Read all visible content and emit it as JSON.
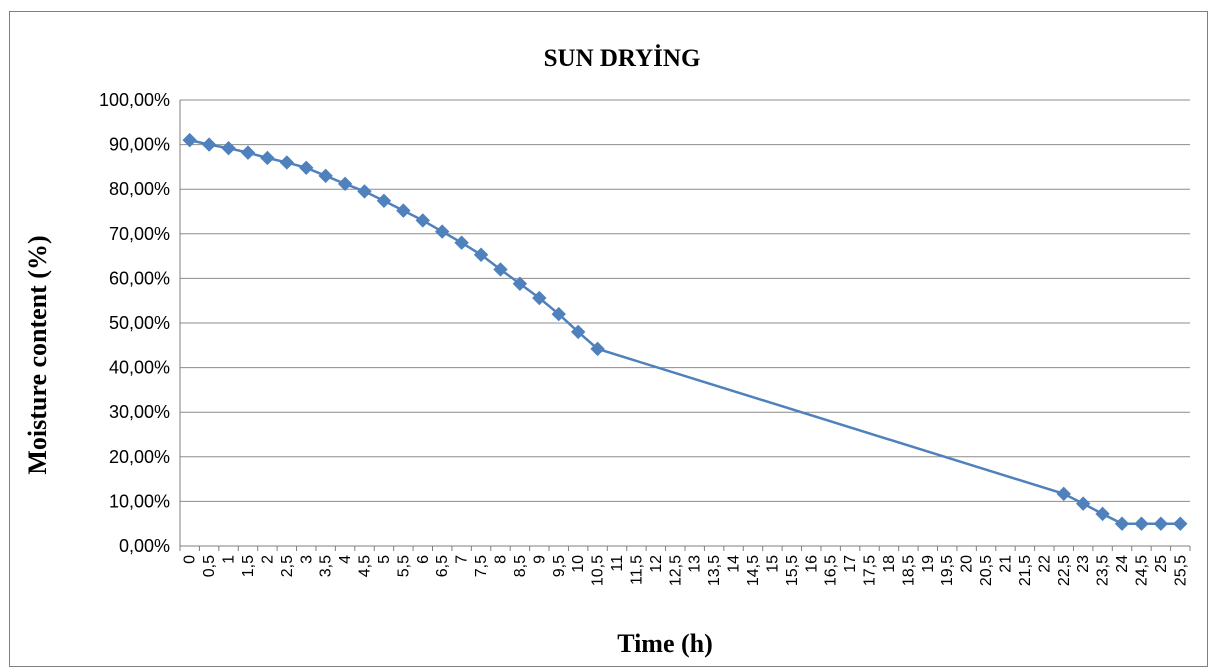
{
  "chart_data": {
    "type": "line",
    "title": "SUN DRYİNG",
    "xlabel": "Time (h)",
    "ylabel": "Moisture content  (%)",
    "ylim": [
      0,
      100
    ],
    "yticks": [
      "0,00%",
      "10,00%",
      "20,00%",
      "30,00%",
      "40,00%",
      "50,00%",
      "60,00%",
      "70,00%",
      "80,00%",
      "90,00%",
      "100,00%"
    ],
    "categories": [
      "0",
      "0,5",
      "1",
      "1,5",
      "2",
      "2,5",
      "3",
      "3,5",
      "4",
      "4,5",
      "5",
      "5,5",
      "6",
      "6,5",
      "7",
      "7,5",
      "8",
      "8,5",
      "9",
      "9,5",
      "10",
      "10,5",
      "11",
      "11,5",
      "12",
      "12,5",
      "13",
      "13,5",
      "14",
      "14,5",
      "15",
      "15,5",
      "16",
      "16,5",
      "17",
      "17,5",
      "18",
      "18,5",
      "19",
      "19,5",
      "20",
      "20,5",
      "21",
      "21,5",
      "22",
      "22,5",
      "23",
      "23,5",
      "24",
      "24,5",
      "25",
      "25,5"
    ],
    "series": [
      {
        "color": "#4f81bd",
        "marker": "diamond",
        "values": [
          91,
          90,
          89.2,
          88.2,
          87,
          86,
          84.8,
          83,
          81.2,
          79.5,
          77.4,
          75.2,
          73,
          70.5,
          68,
          65.3,
          62,
          58.8,
          55.6,
          52,
          48,
          44.2,
          null,
          null,
          null,
          null,
          null,
          null,
          null,
          null,
          null,
          null,
          null,
          null,
          null,
          null,
          null,
          null,
          null,
          null,
          null,
          null,
          null,
          null,
          null,
          11.7,
          9.5,
          7.2,
          5,
          5,
          5,
          5
        ],
        "connect_gaps": true
      }
    ],
    "grid": true,
    "legend": "none"
  }
}
